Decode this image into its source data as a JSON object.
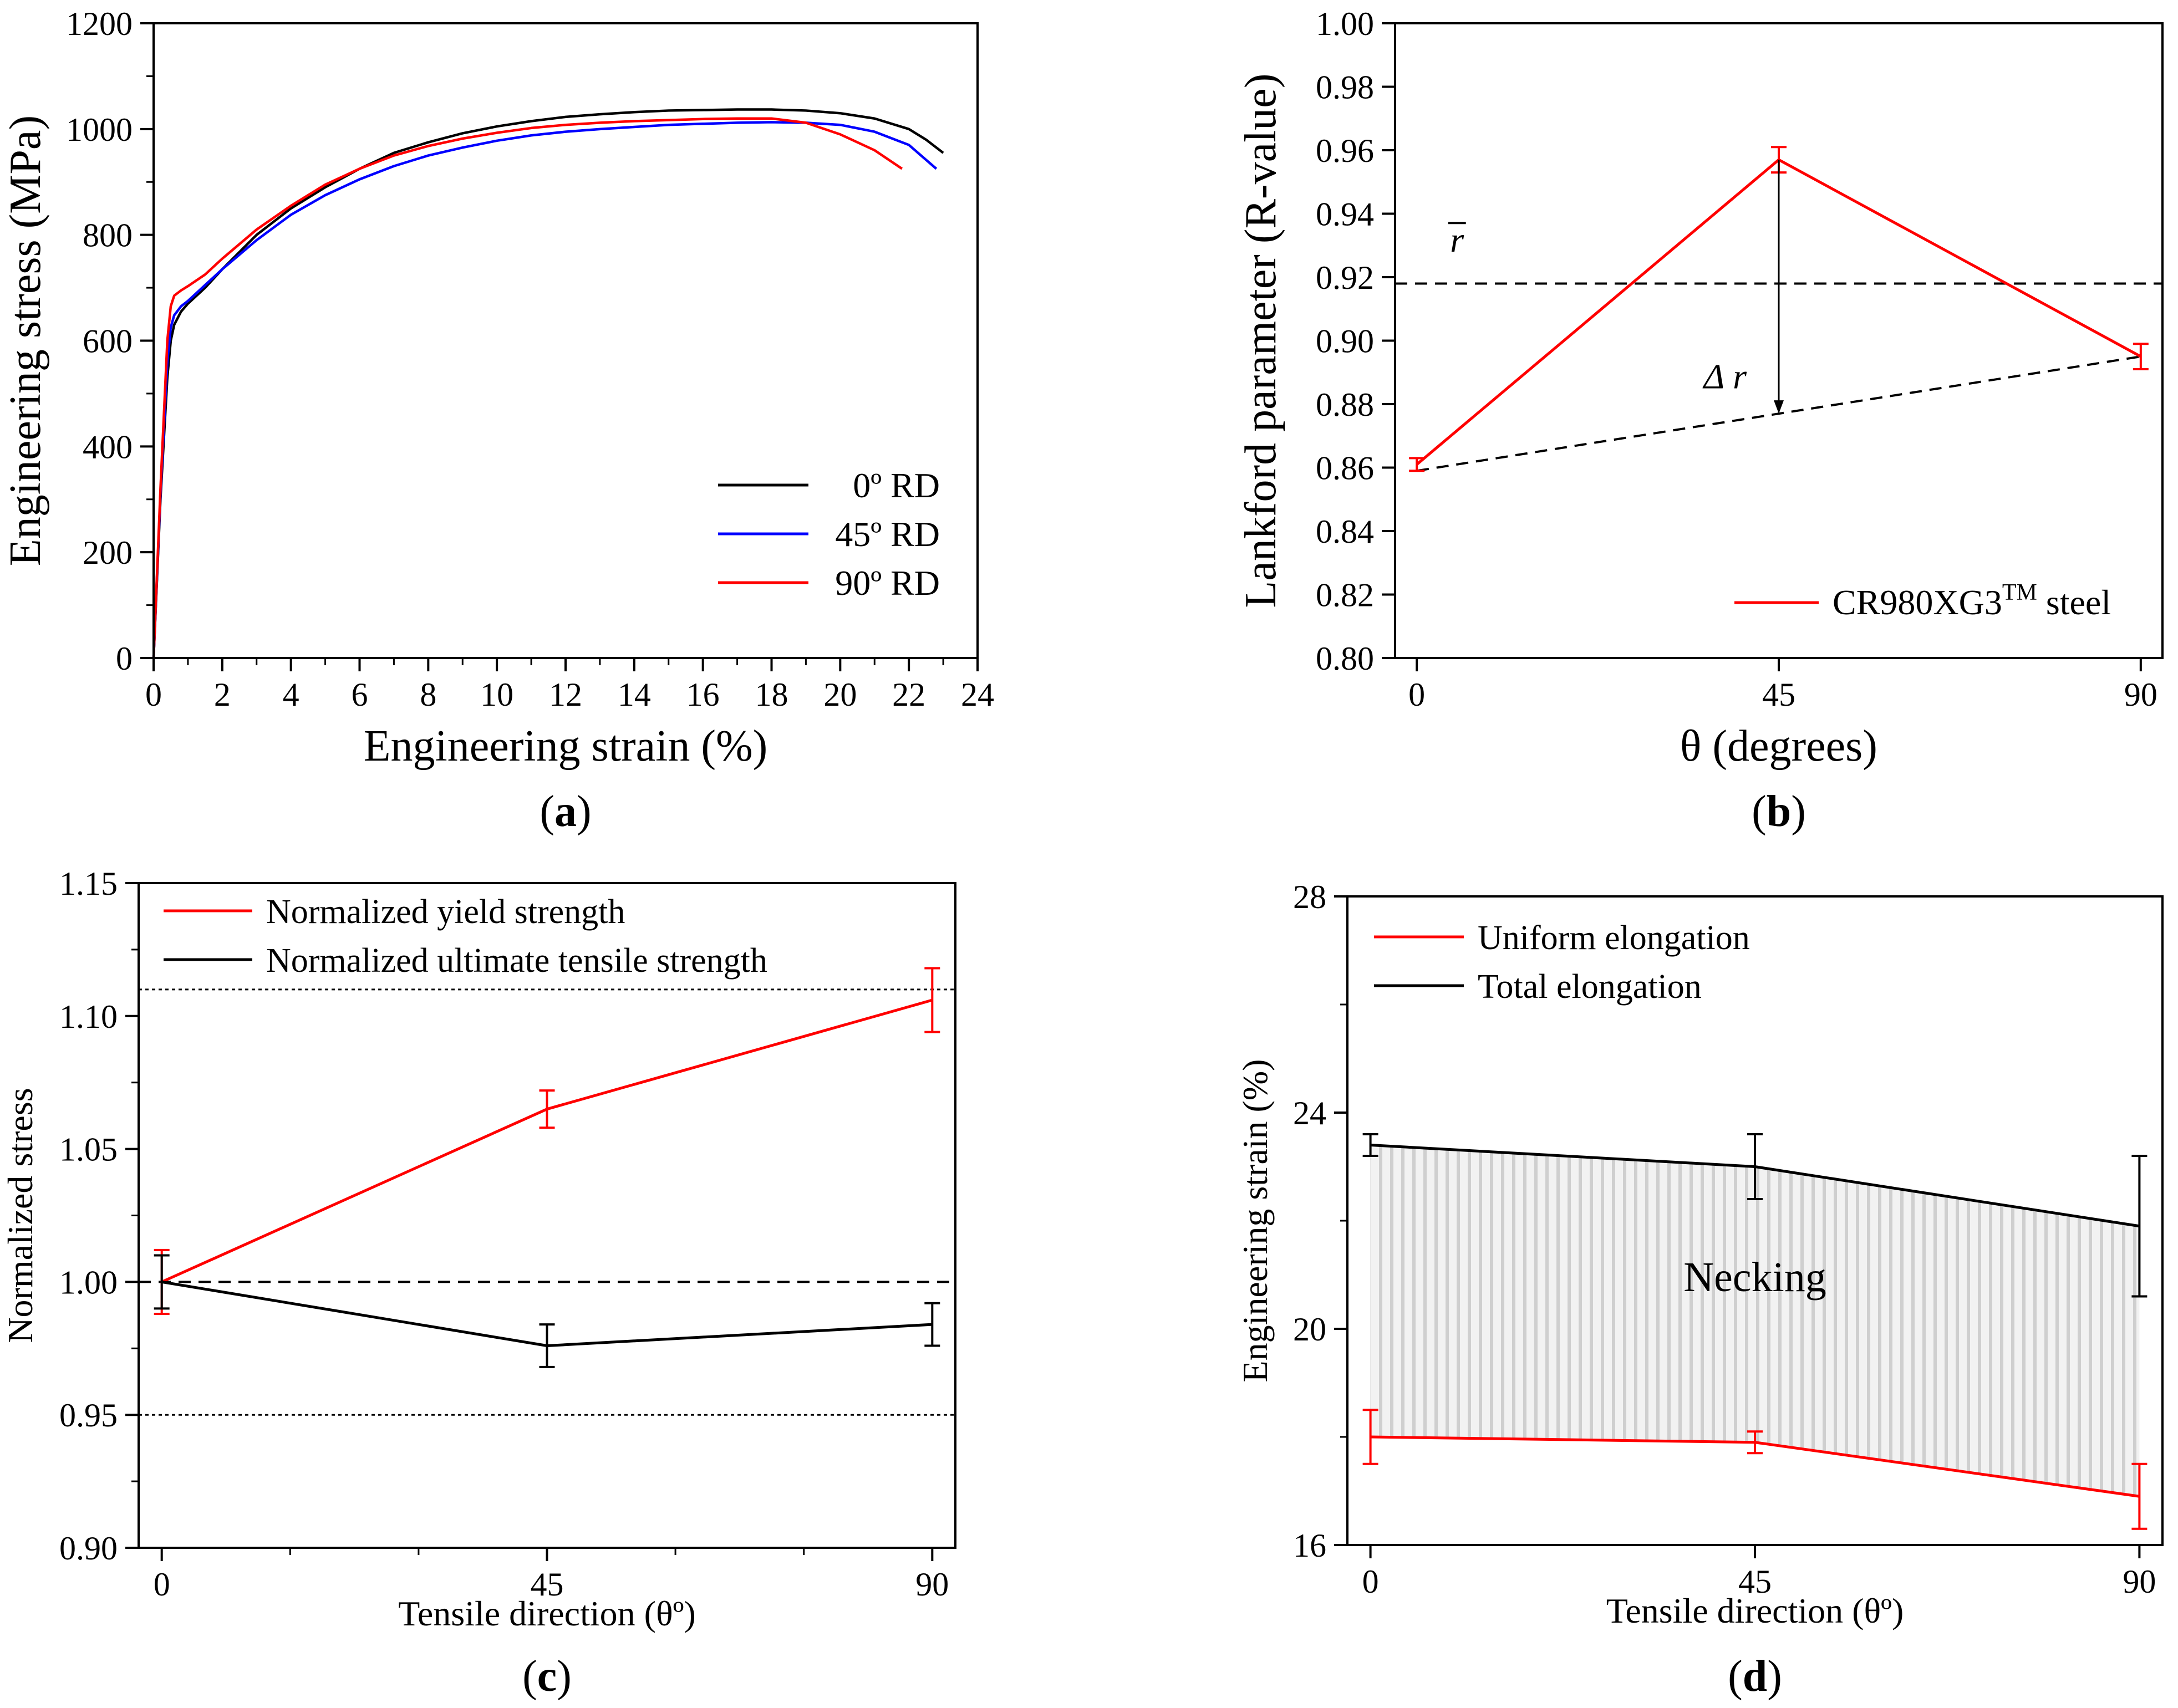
{
  "panels": [
    {
      "id": "a",
      "caption_letter": "a",
      "chart_data": {
        "type": "line",
        "xlabel": "Engineering strain (%)",
        "ylabel": "Engineering stress (MPa)",
        "xlim": [
          0,
          24
        ],
        "ylim": [
          0,
          1200
        ],
        "xticks": [
          0,
          2,
          4,
          6,
          8,
          10,
          12,
          14,
          16,
          18,
          20,
          22,
          24
        ],
        "yticks": [
          0,
          200,
          400,
          600,
          800,
          1000,
          1200
        ],
        "legend_position": "bottom-right",
        "series": [
          {
            "name": "0º RD",
            "color": "#000000",
            "x": [
              0,
              0.2,
              0.4,
              0.5,
              0.6,
              0.8,
              1.0,
              1.5,
              2,
              3,
              4,
              5,
              6,
              7,
              8,
              9,
              10,
              11,
              12,
              13,
              14,
              15,
              16,
              17,
              18,
              19,
              20,
              21,
              22,
              22.5,
              23.0
            ],
            "y": [
              0,
              300,
              530,
              600,
              630,
              655,
              670,
              700,
              735,
              800,
              850,
              890,
              925,
              955,
              975,
              992,
              1005,
              1015,
              1023,
              1028,
              1032,
              1035,
              1036,
              1037,
              1037,
              1035,
              1030,
              1020,
              1000,
              980,
              955
            ]
          },
          {
            "name": "45º RD",
            "color": "#0000ff",
            "x": [
              0,
              0.2,
              0.4,
              0.5,
              0.6,
              0.8,
              1.0,
              1.5,
              2,
              3,
              4,
              5,
              6,
              7,
              8,
              9,
              10,
              11,
              12,
              13,
              14,
              15,
              16,
              17,
              18,
              19,
              20,
              21,
              22,
              22.8
            ],
            "y": [
              0,
              310,
              560,
              625,
              648,
              665,
              675,
              705,
              735,
              790,
              838,
              875,
              905,
              930,
              950,
              965,
              978,
              988,
              995,
              1000,
              1004,
              1008,
              1010,
              1012,
              1013,
              1012,
              1008,
              995,
              970,
              925
            ]
          },
          {
            "name": "90º RD",
            "color": "#ff0000",
            "x": [
              0,
              0.2,
              0.4,
              0.5,
              0.6,
              0.8,
              1.0,
              1.5,
              2,
              3,
              4,
              5,
              6,
              7,
              8,
              9,
              10,
              11,
              12,
              13,
              14,
              15,
              16,
              17,
              18,
              19,
              20,
              21,
              21.8
            ],
            "y": [
              0,
              320,
              600,
              665,
              685,
              695,
              703,
              725,
              755,
              810,
              855,
              895,
              925,
              950,
              968,
              982,
              993,
              1002,
              1008,
              1012,
              1015,
              1017,
              1019,
              1020,
              1020,
              1012,
              990,
              960,
              925
            ]
          }
        ]
      }
    },
    {
      "id": "b",
      "caption_letter": "b",
      "chart_data": {
        "type": "line",
        "xlabel": "θ (degrees)",
        "ylabel": "Lankford parameter (R-value)",
        "xlim": [
          0,
          90
        ],
        "ylim": [
          0.8,
          1.0
        ],
        "xticks": [
          0,
          45,
          90
        ],
        "yticks": [
          0.8,
          0.82,
          0.84,
          0.86,
          0.88,
          0.9,
          0.92,
          0.94,
          0.96,
          0.98,
          1.0
        ],
        "legend_position": "bottom-right",
        "series": [
          {
            "name": "CR980XG3",
            "name_superscript": "TM",
            "name_suffix": " steel",
            "color": "#ff0000",
            "x": [
              0,
              45,
              90
            ],
            "y": [
              0.861,
              0.957,
              0.895
            ],
            "yerr": [
              0.002,
              0.004,
              0.004
            ]
          }
        ],
        "reference_lines": [
          {
            "type": "horizontal",
            "y": 0.918,
            "style": "dashed"
          },
          {
            "type": "segment",
            "x": [
              0,
              90
            ],
            "y": [
              0.859,
              0.895
            ],
            "style": "dashed"
          }
        ],
        "annotations": [
          {
            "text": "r",
            "overline": true,
            "x": 5,
            "y": 0.928
          },
          {
            "text": "Δ r",
            "x": 41,
            "y": 0.885
          },
          {
            "type": "arrow",
            "x": 45,
            "y_from": 0.957,
            "y_to": 0.877
          }
        ]
      }
    },
    {
      "id": "c",
      "caption_letter": "c",
      "chart_data": {
        "type": "line",
        "xlabel": "Tensile direction (θº)",
        "ylabel": "Normalized stress",
        "xlim": [
          0,
          90
        ],
        "ylim": [
          0.9,
          1.15
        ],
        "xticks": [
          0,
          45,
          90
        ],
        "yticks": [
          0.9,
          0.95,
          1.0,
          1.05,
          1.1,
          1.15
        ],
        "legend_position": "top-left",
        "series": [
          {
            "name": "Normalized yield strength",
            "color": "#ff0000",
            "x": [
              0,
              45,
              90
            ],
            "y": [
              1.0,
              1.065,
              1.106
            ],
            "yerr": [
              0.012,
              0.007,
              0.012
            ]
          },
          {
            "name": "Normalized ultimate tensile strength",
            "color": "#000000",
            "x": [
              0,
              45,
              90
            ],
            "y": [
              1.0,
              0.976,
              0.984
            ],
            "yerr": [
              0.01,
              0.008,
              0.008
            ]
          }
        ],
        "reference_lines": [
          {
            "type": "horizontal",
            "y": 1.11,
            "style": "dotted"
          },
          {
            "type": "horizontal",
            "y": 1.0,
            "style": "dashed"
          },
          {
            "type": "horizontal",
            "y": 0.95,
            "style": "dotted"
          }
        ]
      }
    },
    {
      "id": "d",
      "caption_letter": "d",
      "chart_data": {
        "type": "line",
        "xlabel": "Tensile direction (θº)",
        "ylabel": "Engineering strain (%)",
        "xlim": [
          0,
          90
        ],
        "ylim": [
          16,
          28
        ],
        "xticks": [
          0,
          45,
          90
        ],
        "yticks": [
          16,
          20,
          24,
          28
        ],
        "legend_position": "top-left",
        "series": [
          {
            "name": "Uniform elongation",
            "color": "#ff0000",
            "x": [
              0,
              45,
              90
            ],
            "y": [
              18.0,
              17.9,
              16.9
            ],
            "yerr": [
              0.5,
              0.2,
              0.6
            ]
          },
          {
            "name": "Total elongation",
            "color": "#000000",
            "x": [
              0,
              45,
              90
            ],
            "y": [
              23.4,
              23.0,
              21.9
            ],
            "yerr": [
              0.2,
              0.6,
              1.3
            ]
          }
        ],
        "shaded_region": {
          "between": [
            "Uniform elongation",
            "Total elongation"
          ],
          "color": "#e6e6e6",
          "pattern": "vertical-lines"
        },
        "annotations": [
          {
            "text": "Necking",
            "x": 45,
            "y": 20.7
          }
        ]
      }
    }
  ]
}
